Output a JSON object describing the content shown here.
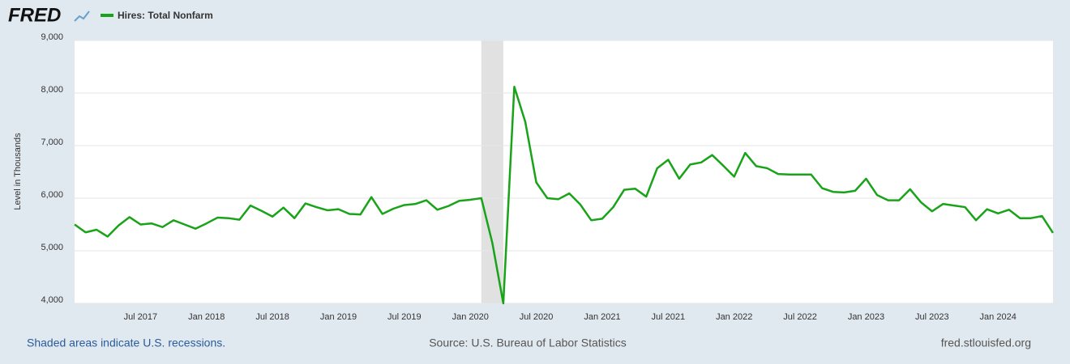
{
  "chart_data": {
    "type": "line",
    "logo": "FRED",
    "y_label": "Level in Thousands",
    "note": "Shaded areas indicate U.S. recessions.",
    "source": "Source: U.S. Bureau of Labor Statistics",
    "site": "fred.stlouisfed.org",
    "x": [
      "2017-01",
      "2017-02",
      "2017-03",
      "2017-04",
      "2017-05",
      "2017-06",
      "2017-07",
      "2017-08",
      "2017-09",
      "2017-10",
      "2017-11",
      "2017-12",
      "2018-01",
      "2018-02",
      "2018-03",
      "2018-04",
      "2018-05",
      "2018-06",
      "2018-07",
      "2018-08",
      "2018-09",
      "2018-10",
      "2018-11",
      "2018-12",
      "2019-01",
      "2019-02",
      "2019-03",
      "2019-04",
      "2019-05",
      "2019-06",
      "2019-07",
      "2019-08",
      "2019-09",
      "2019-10",
      "2019-11",
      "2019-12",
      "2020-01",
      "2020-02",
      "2020-03",
      "2020-04",
      "2020-05",
      "2020-06",
      "2020-07",
      "2020-08",
      "2020-09",
      "2020-10",
      "2020-11",
      "2020-12",
      "2021-01",
      "2021-02",
      "2021-03",
      "2021-04",
      "2021-05",
      "2021-06",
      "2021-07",
      "2021-08",
      "2021-09",
      "2021-10",
      "2021-11",
      "2021-12",
      "2022-01",
      "2022-02",
      "2022-03",
      "2022-04",
      "2022-05",
      "2022-06",
      "2022-07",
      "2022-08",
      "2022-09",
      "2022-10",
      "2022-11",
      "2022-12",
      "2023-01",
      "2023-02",
      "2023-03",
      "2023-04",
      "2023-05",
      "2023-06",
      "2023-07",
      "2023-08",
      "2023-09",
      "2023-10",
      "2023-11",
      "2023-12",
      "2024-01",
      "2024-02",
      "2024-03",
      "2024-04",
      "2024-05",
      "2024-06"
    ],
    "series": [
      {
        "name": "Hires: Total Nonfarm",
        "color": "#19a319",
        "values": [
          5500,
          5350,
          5400,
          5270,
          5480,
          5640,
          5500,
          5520,
          5450,
          5580,
          5500,
          5420,
          5520,
          5630,
          5620,
          5590,
          5860,
          5760,
          5650,
          5820,
          5620,
          5900,
          5830,
          5770,
          5790,
          5700,
          5690,
          6020,
          5700,
          5800,
          5870,
          5890,
          5960,
          5780,
          5850,
          5950,
          5970,
          6000,
          5150,
          4000,
          8120,
          7450,
          6300,
          6000,
          5980,
          6090,
          5880,
          5580,
          5610,
          5830,
          6160,
          6180,
          6030,
          6570,
          6730,
          6370,
          6640,
          6680,
          6820,
          6620,
          6410,
          6860,
          6610,
          6570,
          6460,
          6450,
          6450,
          6450,
          6190,
          6120,
          6110,
          6140,
          6370,
          6060,
          5960,
          5960,
          6170,
          5920,
          5750,
          5890,
          5860,
          5830,
          5580,
          5790,
          5710,
          5780,
          5620,
          5620,
          5660,
          5340
        ]
      }
    ],
    "recessions": [
      {
        "start": "2020-02",
        "end": "2020-04"
      }
    ],
    "ylim": [
      4000,
      9000
    ],
    "yticks": [
      {
        "value": 4000,
        "label": "4,000"
      },
      {
        "value": 5000,
        "label": "5,000"
      },
      {
        "value": 6000,
        "label": "6,000"
      },
      {
        "value": 7000,
        "label": "7,000"
      },
      {
        "value": 8000,
        "label": "8,000"
      },
      {
        "value": 9000,
        "label": "9,000"
      }
    ],
    "xticks": [
      {
        "value": "2017-07",
        "label": "Jul 2017"
      },
      {
        "value": "2018-01",
        "label": "Jan 2018"
      },
      {
        "value": "2018-07",
        "label": "Jul 2018"
      },
      {
        "value": "2019-01",
        "label": "Jan 2019"
      },
      {
        "value": "2019-07",
        "label": "Jul 2019"
      },
      {
        "value": "2020-01",
        "label": "Jan 2020"
      },
      {
        "value": "2020-07",
        "label": "Jul 2020"
      },
      {
        "value": "2021-01",
        "label": "Jan 2021"
      },
      {
        "value": "2021-07",
        "label": "Jul 2021"
      },
      {
        "value": "2022-01",
        "label": "Jan 2022"
      },
      {
        "value": "2022-07",
        "label": "Jul 2022"
      },
      {
        "value": "2023-01",
        "label": "Jan 2023"
      },
      {
        "value": "2023-07",
        "label": "Jul 2023"
      },
      {
        "value": "2024-01",
        "label": "Jan 2024"
      }
    ],
    "grid": true
  }
}
